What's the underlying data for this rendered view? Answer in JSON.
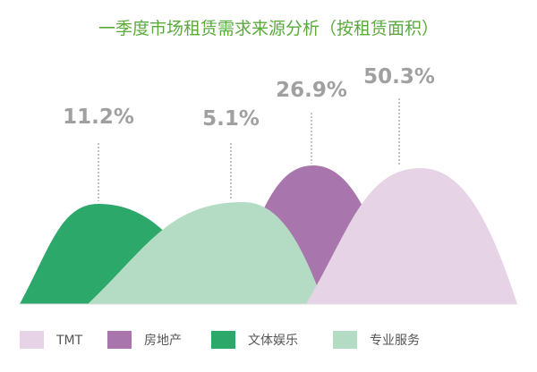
{
  "chart_data": {
    "type": "area",
    "title": "一季度市场租赁需求来源分析（按租赁面积）",
    "unit": "%",
    "series": [
      {
        "name": "TMT",
        "value": 50.3,
        "label": "50.3%",
        "color": "#e6d3e6"
      },
      {
        "name": "房地产",
        "value": 26.9,
        "label": "26.9%",
        "color": "#a875ad"
      },
      {
        "name": "文体娱乐",
        "value": 11.2,
        "label": "11.2%",
        "color": "#2ca86a"
      },
      {
        "name": "专业服务",
        "value": 5.1,
        "label": "5.1%",
        "color": "#b4dcc4"
      }
    ],
    "legend_position": "bottom",
    "title_color": "#5aaa3c",
    "label_color": "#a0a0a0",
    "legend_text_color": "#555555"
  }
}
